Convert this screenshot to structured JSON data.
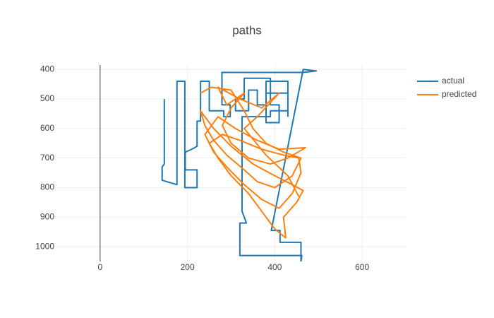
{
  "chart_data": {
    "type": "line",
    "title": "paths",
    "xlim": [
      -100,
      700
    ],
    "xticks": [
      0,
      200,
      400,
      600
    ],
    "ylim": [
      1050,
      385
    ],
    "yticks": [
      400,
      500,
      600,
      700,
      800,
      900,
      1000
    ],
    "grid": true,
    "zeroline": true,
    "legend": "right",
    "series": [
      {
        "name": "actual",
        "color": "#1f77b4",
        "x": [
          147,
          147,
          142,
          142,
          176,
          176,
          194,
          194,
          222,
          222,
          195,
          195,
          210,
          222,
          222,
          230,
          230,
          250,
          250,
          283,
          283,
          298,
          298,
          279,
          279,
          465,
          495,
          465,
          392,
          412,
          412,
          460,
          460,
          462,
          320,
          320,
          335,
          325,
          325,
          390,
          390,
          430,
          430,
          380,
          380,
          360,
          360,
          340,
          340,
          310,
          310,
          330,
          330,
          390,
          390,
          410,
          410,
          380,
          380,
          430,
          430
        ],
        "values": [
          500,
          720,
          730,
          775,
          790,
          440,
          440,
          800,
          800,
          740,
          740,
          680,
          670,
          660,
          575,
          575,
          440,
          440,
          540,
          540,
          560,
          560,
          520,
          520,
          410,
          410,
          405,
          400,
          945,
          945,
          985,
          985,
          1050,
          1030,
          1030,
          920,
          920,
          880,
          560,
          560,
          540,
          540,
          480,
          480,
          520,
          520,
          470,
          470,
          540,
          540,
          500,
          500,
          430,
          430,
          520,
          520,
          580,
          580,
          440,
          440,
          560
        ]
      },
      {
        "name": "predicted",
        "color": "#ff7f0e",
        "x": [
          230,
          255,
          300,
          330,
          350,
          380,
          420,
          460,
          440,
          400,
          360,
          330,
          290,
          260,
          240,
          230,
          260,
          300,
          350,
          400,
          440,
          465,
          450,
          420,
          425,
          400,
          370,
          340,
          300,
          270,
          250,
          280,
          320,
          370,
          420,
          455,
          460,
          440,
          410,
          370,
          330,
          290,
          260,
          240,
          270,
          310,
          360,
          410,
          470,
          430,
          390,
          340,
          300,
          280,
          300,
          330,
          290,
          270,
          320,
          370,
          410,
          360,
          330,
          380,
          430,
          455
        ],
        "values": [
          480,
          460,
          470,
          540,
          600,
          650,
          680,
          700,
          760,
          800,
          780,
          740,
          690,
          640,
          590,
          540,
          600,
          660,
          720,
          760,
          790,
          810,
          850,
          900,
          970,
          940,
          880,
          820,
          760,
          700,
          650,
          620,
          640,
          670,
          690,
          700,
          750,
          820,
          870,
          840,
          790,
          730,
          680,
          620,
          560,
          600,
          640,
          670,
          665,
          700,
          720,
          700,
          650,
          590,
          530,
          480,
          520,
          460,
          500,
          530,
          480,
          560,
          600,
          690,
          760,
          830
        ]
      }
    ]
  }
}
